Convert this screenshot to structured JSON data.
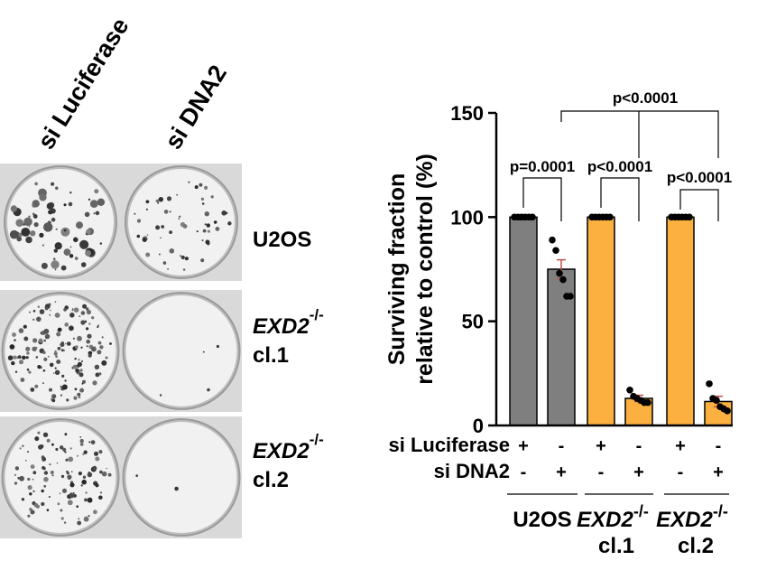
{
  "plates": {
    "column_labels": [
      "si Luciferase",
      "si DNA2"
    ],
    "rows": [
      {
        "line1": "U2OS",
        "line2": "",
        "sup": ""
      },
      {
        "line1": "EXD2",
        "line2": "cl.1",
        "sup": "-/-"
      },
      {
        "line1": "EXD2",
        "line2": "cl.2",
        "sup": "-/-"
      }
    ]
  },
  "colors": {
    "u2os_bar": "#7f7f7f",
    "exd2_bar": "#fbb040",
    "error_bar": "#c0504d",
    "dot": "#000000"
  },
  "chart_data": {
    "type": "bar",
    "ylabel": "Surviving fraction relative to control (%)",
    "ylim": [
      0,
      150
    ],
    "yticks": [
      0,
      50,
      100,
      150
    ],
    "categories": [
      "U2OS si Luciferase",
      "U2OS si DNA2",
      "EXD2-/- cl.1 si Luciferase",
      "EXD2-/- cl.1 si DNA2",
      "EXD2-/- cl.2 si Luciferase",
      "EXD2-/- cl.2 si DNA2"
    ],
    "values": [
      100,
      75,
      100,
      13,
      100,
      11.5
    ],
    "errors": [
      0,
      4.5,
      0,
      1.5,
      0,
      2.5
    ],
    "points": [
      [
        100,
        100,
        100,
        100,
        100,
        100
      ],
      [
        89,
        84,
        73,
        70,
        62,
        62
      ],
      [
        100,
        100,
        100,
        100,
        100,
        100
      ],
      [
        17,
        14,
        13,
        12,
        11,
        11
      ],
      [
        100,
        100,
        100,
        100,
        100,
        100
      ],
      [
        20,
        13,
        12,
        9,
        8,
        7
      ]
    ],
    "bar_color_keys": [
      "u2os_bar",
      "u2os_bar",
      "exd2_bar",
      "exd2_bar",
      "exd2_bar",
      "exd2_bar"
    ],
    "factor_rows": [
      {
        "label": "si Luciferase",
        "marks": [
          "+",
          "-",
          "+",
          "-",
          "+",
          "-"
        ]
      },
      {
        "label": "si DNA2",
        "marks": [
          "-",
          "+",
          "-",
          "+",
          "-",
          "+"
        ]
      }
    ],
    "groups": [
      {
        "name": "U2OS",
        "sup": "",
        "line2": ""
      },
      {
        "name": "EXD2",
        "sup": "-/-",
        "line2": "cl.1"
      },
      {
        "name": "EXD2",
        "sup": "-/-",
        "line2": "cl.2"
      }
    ],
    "comparisons": [
      {
        "from": 0,
        "to": 1,
        "label": "p=0.0001"
      },
      {
        "from": 2,
        "to": 3,
        "label": "p<0.0001"
      },
      {
        "from": 4,
        "to": 5,
        "label": "p<0.0001"
      },
      {
        "from": 1,
        "to": [
          3,
          5
        ],
        "label": "p<0.0001"
      }
    ]
  }
}
